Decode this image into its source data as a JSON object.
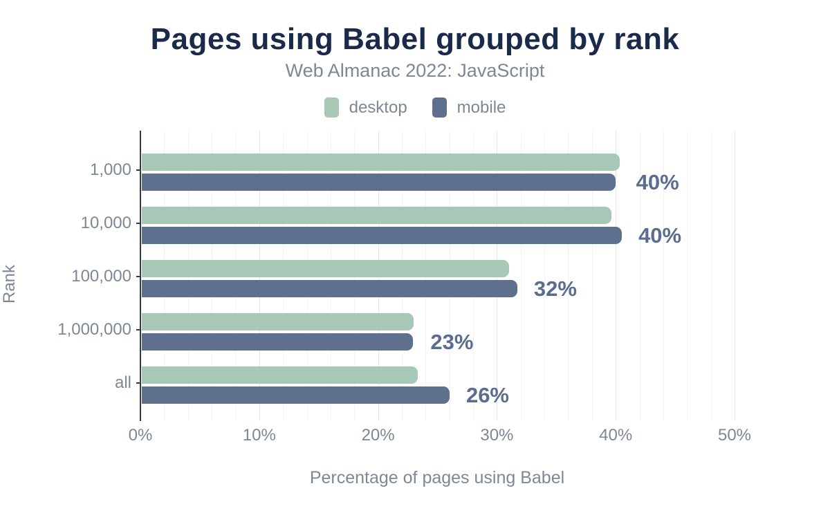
{
  "title": "Pages using Babel grouped by rank",
  "subtitle": "Web Almanac 2022: JavaScript",
  "colors": {
    "title": "#1b2a4a",
    "muted_text": "#7d8796",
    "axis": "#343a40",
    "value_label": "#5a6c8f",
    "desktop": "#a7c8b7",
    "mobile": "#5e708d",
    "gridline_minor": "#f2f2f2",
    "gridline_major": "#e6e6e6"
  },
  "chart_data": {
    "type": "bar",
    "orientation": "horizontal",
    "title": "Pages using Babel grouped by rank",
    "subtitle": "Web Almanac 2022: JavaScript",
    "categories": [
      "1,000",
      "10,000",
      "100,000",
      "1,000,000",
      "all"
    ],
    "series": [
      {
        "name": "desktop",
        "color": "#a7c8b7",
        "values": [
          40.2,
          39.5,
          30.9,
          22.9,
          23.2
        ]
      },
      {
        "name": "mobile",
        "color": "#5e708d",
        "values": [
          39.9,
          40.4,
          31.6,
          22.8,
          25.9
        ]
      }
    ],
    "data_labels": [
      "40%",
      "40%",
      "32%",
      "23%",
      "26%"
    ],
    "data_label_series": "mobile",
    "xlabel": "Percentage of pages using Babel",
    "ylabel": "Rank",
    "x_ticks": [
      "0%",
      "10%",
      "20%",
      "30%",
      "40%",
      "50%"
    ],
    "xlim": [
      0,
      50
    ],
    "grid_step_pct": 2,
    "legend_position": "top",
    "grid": true
  }
}
